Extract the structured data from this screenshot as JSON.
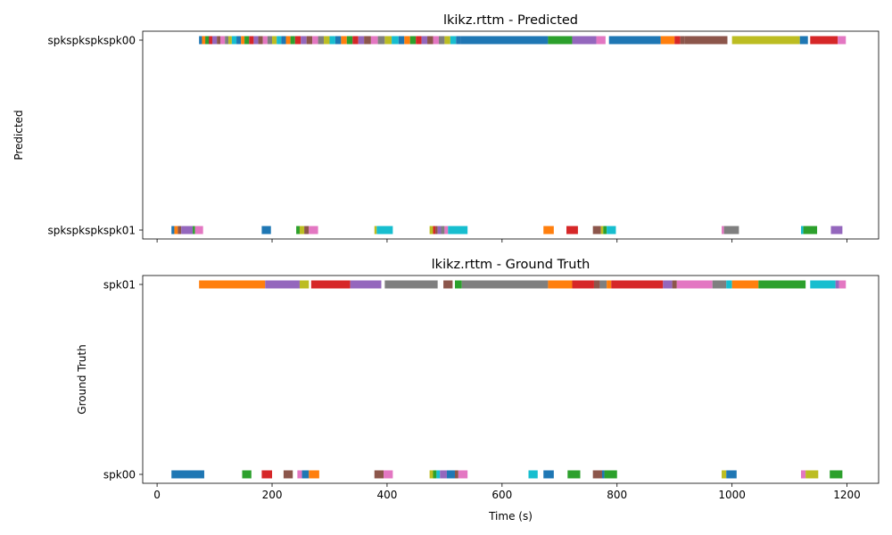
{
  "palette": [
    "#1f77b4",
    "#ff7f0e",
    "#2ca02c",
    "#d62728",
    "#9467bd",
    "#8c564b",
    "#e377c2",
    "#7f7f7f",
    "#bcbd22",
    "#17becf"
  ],
  "chart_data": [
    {
      "type": "timeline",
      "title": "lkikz.rttm - Predicted",
      "xlabel": "",
      "ylabel": "Predicted",
      "xlim": [
        -25,
        1255
      ],
      "xticks": [
        0,
        200,
        400,
        600,
        800,
        1000,
        1200
      ],
      "show_xtick_labels": false,
      "tracks": [
        "spkspkspkspk01",
        "spkspkspkspk00"
      ],
      "segments": [
        [
          1,
          73,
          92,
          0
        ],
        [
          1,
          78,
          84,
          1
        ],
        [
          1,
          84,
          90,
          2
        ],
        [
          1,
          90,
          96,
          3
        ],
        [
          1,
          96,
          104,
          4
        ],
        [
          1,
          104,
          110,
          5
        ],
        [
          1,
          110,
          118,
          6
        ],
        [
          1,
          118,
          124,
          7
        ],
        [
          1,
          124,
          130,
          8
        ],
        [
          1,
          130,
          138,
          9
        ],
        [
          1,
          138,
          146,
          0
        ],
        [
          1,
          146,
          152,
          1
        ],
        [
          1,
          152,
          160,
          2
        ],
        [
          1,
          160,
          168,
          3
        ],
        [
          1,
          168,
          176,
          4
        ],
        [
          1,
          176,
          184,
          5
        ],
        [
          1,
          184,
          192,
          6
        ],
        [
          1,
          192,
          200,
          7
        ],
        [
          1,
          200,
          208,
          8
        ],
        [
          1,
          208,
          216,
          9
        ],
        [
          1,
          216,
          224,
          0
        ],
        [
          1,
          224,
          232,
          1
        ],
        [
          1,
          232,
          240,
          2
        ],
        [
          1,
          240,
          250,
          3
        ],
        [
          1,
          250,
          260,
          4
        ],
        [
          1,
          260,
          270,
          5
        ],
        [
          1,
          270,
          280,
          6
        ],
        [
          1,
          280,
          290,
          7
        ],
        [
          1,
          290,
          300,
          8
        ],
        [
          1,
          300,
          310,
          9
        ],
        [
          1,
          310,
          320,
          0
        ],
        [
          1,
          320,
          330,
          1
        ],
        [
          1,
          330,
          340,
          2
        ],
        [
          1,
          340,
          350,
          3
        ],
        [
          1,
          350,
          360,
          4
        ],
        [
          1,
          360,
          372,
          5
        ],
        [
          1,
          372,
          384,
          6
        ],
        [
          1,
          384,
          396,
          7
        ],
        [
          1,
          396,
          408,
          8
        ],
        [
          1,
          408,
          420,
          9
        ],
        [
          1,
          420,
          430,
          0
        ],
        [
          1,
          430,
          440,
          1
        ],
        [
          1,
          440,
          450,
          2
        ],
        [
          1,
          450,
          460,
          3
        ],
        [
          1,
          460,
          470,
          4
        ],
        [
          1,
          470,
          480,
          5
        ],
        [
          1,
          480,
          490,
          6
        ],
        [
          1,
          490,
          500,
          7
        ],
        [
          1,
          500,
          510,
          8
        ],
        [
          1,
          510,
          520,
          9
        ],
        [
          1,
          520,
          528,
          0
        ],
        [
          1,
          528,
          680,
          0
        ],
        [
          1,
          680,
          722,
          2
        ],
        [
          1,
          722,
          764,
          4
        ],
        [
          1,
          764,
          780,
          6
        ],
        [
          1,
          786,
          876,
          0
        ],
        [
          1,
          876,
          900,
          1
        ],
        [
          1,
          900,
          910,
          3
        ],
        [
          1,
          910,
          918,
          5
        ],
        [
          1,
          918,
          992,
          5
        ],
        [
          1,
          1000,
          1118,
          8
        ],
        [
          1,
          1118,
          1132,
          0
        ],
        [
          1,
          1136,
          1184,
          3
        ],
        [
          1,
          1184,
          1198,
          6
        ],
        [
          0,
          25,
          30,
          0
        ],
        [
          0,
          30,
          36,
          1
        ],
        [
          0,
          36,
          42,
          5
        ],
        [
          0,
          42,
          62,
          4
        ],
        [
          0,
          62,
          66,
          2
        ],
        [
          0,
          66,
          80,
          6
        ],
        [
          0,
          182,
          198,
          0
        ],
        [
          0,
          242,
          248,
          2
        ],
        [
          0,
          248,
          256,
          8
        ],
        [
          0,
          256,
          264,
          5
        ],
        [
          0,
          264,
          280,
          6
        ],
        [
          0,
          378,
          382,
          8
        ],
        [
          0,
          382,
          410,
          9
        ],
        [
          0,
          474,
          480,
          8
        ],
        [
          0,
          480,
          484,
          3
        ],
        [
          0,
          484,
          488,
          5
        ],
        [
          0,
          488,
          494,
          4
        ],
        [
          0,
          494,
          500,
          7
        ],
        [
          0,
          500,
          506,
          6
        ],
        [
          0,
          506,
          540,
          9
        ],
        [
          0,
          672,
          690,
          1
        ],
        [
          0,
          712,
          732,
          3
        ],
        [
          0,
          758,
          772,
          5
        ],
        [
          0,
          772,
          776,
          8
        ],
        [
          0,
          776,
          782,
          2
        ],
        [
          0,
          782,
          798,
          9
        ],
        [
          0,
          982,
          986,
          6
        ],
        [
          0,
          986,
          1012,
          7
        ],
        [
          0,
          1120,
          1124,
          9
        ],
        [
          0,
          1124,
          1148,
          2
        ],
        [
          0,
          1172,
          1192,
          4
        ]
      ]
    },
    {
      "type": "timeline",
      "title": "lkikz.rttm - Ground Truth",
      "xlabel": "Time (s)",
      "ylabel": "Ground Truth",
      "xlim": [
        -25,
        1255
      ],
      "xticks": [
        0,
        200,
        400,
        600,
        800,
        1000,
        1200
      ],
      "show_xtick_labels": true,
      "tracks": [
        "spk00",
        "spk01"
      ],
      "segments": [
        [
          1,
          73,
          188,
          1
        ],
        [
          1,
          188,
          248,
          4
        ],
        [
          1,
          248,
          264,
          8
        ],
        [
          1,
          268,
          336,
          3
        ],
        [
          1,
          336,
          390,
          4
        ],
        [
          1,
          396,
          488,
          7
        ],
        [
          1,
          498,
          514,
          5
        ],
        [
          1,
          518,
          530,
          2
        ],
        [
          1,
          530,
          680,
          7
        ],
        [
          1,
          680,
          722,
          1
        ],
        [
          1,
          722,
          760,
          3
        ],
        [
          1,
          760,
          770,
          5
        ],
        [
          1,
          770,
          782,
          7
        ],
        [
          1,
          782,
          790,
          1
        ],
        [
          1,
          790,
          880,
          3
        ],
        [
          1,
          880,
          896,
          4
        ],
        [
          1,
          896,
          904,
          5
        ],
        [
          1,
          904,
          966,
          6
        ],
        [
          1,
          966,
          990,
          7
        ],
        [
          1,
          990,
          1000,
          9
        ],
        [
          1,
          1000,
          1046,
          1
        ],
        [
          1,
          1046,
          1128,
          2
        ],
        [
          1,
          1136,
          1180,
          9
        ],
        [
          1,
          1180,
          1186,
          4
        ],
        [
          1,
          1186,
          1198,
          6
        ],
        [
          0,
          25,
          82,
          0
        ],
        [
          0,
          148,
          164,
          2
        ],
        [
          0,
          182,
          200,
          3
        ],
        [
          0,
          220,
          236,
          5
        ],
        [
          0,
          244,
          252,
          6
        ],
        [
          0,
          252,
          264,
          0
        ],
        [
          0,
          264,
          282,
          1
        ],
        [
          0,
          378,
          394,
          5
        ],
        [
          0,
          394,
          410,
          6
        ],
        [
          0,
          474,
          480,
          8
        ],
        [
          0,
          480,
          486,
          2
        ],
        [
          0,
          486,
          492,
          9
        ],
        [
          0,
          492,
          504,
          4
        ],
        [
          0,
          504,
          518,
          0
        ],
        [
          0,
          518,
          524,
          5
        ],
        [
          0,
          524,
          540,
          6
        ],
        [
          0,
          646,
          662,
          9
        ],
        [
          0,
          672,
          690,
          0
        ],
        [
          0,
          714,
          736,
          2
        ],
        [
          0,
          758,
          774,
          5
        ],
        [
          0,
          774,
          778,
          0
        ],
        [
          0,
          778,
          800,
          2
        ],
        [
          0,
          982,
          990,
          8
        ],
        [
          0,
          990,
          1008,
          0
        ],
        [
          0,
          1120,
          1128,
          6
        ],
        [
          0,
          1128,
          1150,
          8
        ],
        [
          0,
          1170,
          1192,
          2
        ]
      ]
    }
  ]
}
